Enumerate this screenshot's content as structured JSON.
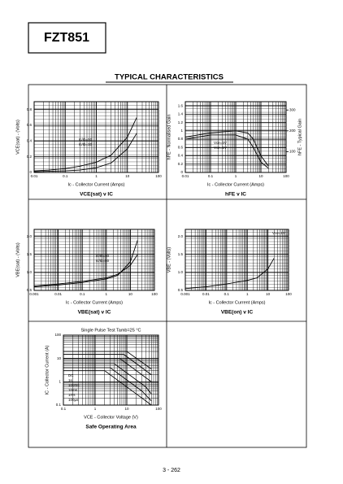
{
  "header": {
    "part": "FZT851"
  },
  "section_title": "TYPICAL CHARACTERISTICS",
  "footer": "3 - 262",
  "chart_data": [
    {
      "type": "line",
      "title": "VCE(sat) v IC",
      "xlabel": "Ic - Collector Current (Amps)",
      "ylabel": "VCE(sat) - (Volts)",
      "xlog": true,
      "xlim": [
        0.01,
        100
      ],
      "xticks": [
        0.01,
        0.1,
        1,
        10,
        100
      ],
      "ylim": [
        0,
        0.9
      ],
      "yticks": [
        0,
        0.2,
        0.4,
        0.6,
        0.8
      ],
      "series": [
        {
          "name": "Ic/Ib=50",
          "color": "#000000",
          "x": [
            0.01,
            0.03,
            0.1,
            0.3,
            1,
            3,
            10,
            20
          ],
          "values": [
            0.02,
            0.03,
            0.05,
            0.08,
            0.13,
            0.22,
            0.45,
            0.7
          ]
        },
        {
          "name": "Ic/Ib=10",
          "color": "#000000",
          "x": [
            0.01,
            0.03,
            0.1,
            0.3,
            1,
            3,
            10,
            20
          ],
          "values": [
            0.01,
            0.015,
            0.02,
            0.03,
            0.06,
            0.12,
            0.3,
            0.5
          ]
        }
      ]
    },
    {
      "type": "line",
      "title": "hFE v IC",
      "xlabel": "Ic - Collector Current (Amps)",
      "ylabel": "hFE - Normalised Gain",
      "y2label": "hFE - Typical Gain",
      "xlog": true,
      "xlim": [
        0.01,
        100
      ],
      "xticks": [
        0.01,
        0.1,
        1,
        10,
        100
      ],
      "ylim": [
        0,
        1.7
      ],
      "yticks": [
        0,
        0.2,
        0.4,
        0.6,
        0.8,
        1.0,
        1.2,
        1.4,
        1.6
      ],
      "y2lim": [
        0,
        340
      ],
      "y2ticks": [
        100,
        200,
        300
      ],
      "series": [
        {
          "name": "Vce=5V",
          "color": "#000000",
          "x": [
            0.01,
            0.1,
            1,
            3,
            5,
            10,
            20
          ],
          "values": [
            0.85,
            0.95,
            1.0,
            0.95,
            0.8,
            0.4,
            0.15
          ]
        },
        {
          "name": "Vce=1V",
          "color": "#000000",
          "x": [
            0.01,
            0.1,
            1,
            3,
            5,
            10,
            20
          ],
          "values": [
            0.8,
            0.9,
            0.9,
            0.8,
            0.6,
            0.25,
            0.1
          ]
        }
      ]
    },
    {
      "type": "line",
      "title": "VBE(sat) v IC",
      "xlabel": "Ic - Collector Current (Amps)",
      "ylabel": "VBE(sat) - (Volts)",
      "xlog": true,
      "xlim": [
        0.001,
        100
      ],
      "xticks": [
        0.001,
        0.01,
        0.1,
        1,
        10,
        100
      ],
      "ylim": [
        0.5,
        2.2
      ],
      "yticks": [
        0.5,
        {
          "value": 1,
          "label": "1.0"
        },
        1.5,
        {
          "value": 2,
          "label": "2.0"
        }
      ],
      "series": [
        {
          "name": "Ic/Ib=10",
          "color": "#000000",
          "x": [
            0.001,
            0.01,
            0.1,
            1,
            3,
            10,
            20
          ],
          "values": [
            0.62,
            0.68,
            0.75,
            0.85,
            0.95,
            1.2,
            1.5
          ]
        },
        {
          "name": "Ic/Ib=50",
          "color": "#000000",
          "x": [
            0.001,
            0.01,
            0.1,
            1,
            3,
            10,
            20
          ],
          "values": [
            0.6,
            0.65,
            0.72,
            0.82,
            0.92,
            1.3,
            1.9
          ]
        }
      ]
    },
    {
      "type": "line",
      "title": "VBE(on) v IC",
      "xlabel": "Ic - Collector Current (Amps)",
      "ylabel": "VBE - (Volts)",
      "xlog": true,
      "xlim": [
        0.001,
        100
      ],
      "xticks": [
        0.001,
        0.01,
        0.1,
        1,
        10,
        100
      ],
      "ylim": [
        0.5,
        2.2
      ],
      "yticks": [
        0.5,
        {
          "value": 1,
          "label": "1.0"
        },
        1.5,
        {
          "value": 2,
          "label": "2.0"
        }
      ],
      "series": [
        {
          "name": "Vce=1V",
          "color": "#000000",
          "x": [
            0.001,
            0.01,
            0.1,
            1,
            3,
            10,
            20
          ],
          "values": [
            0.55,
            0.6,
            0.68,
            0.78,
            0.85,
            1.1,
            1.4
          ]
        }
      ]
    },
    {
      "type": "line",
      "title": "Safe Operating Area",
      "subtitle": "Single Pulse Test Tamb=25 °C",
      "xlabel": "VCE - Collector Voltage (V)",
      "ylabel": "IC - Collector Current (A)",
      "xlog": true,
      "xlim": [
        0.1,
        100
      ],
      "xticks": [
        0.1,
        1,
        10,
        100
      ],
      "ylog": true,
      "ylim": [
        0.1,
        100
      ],
      "yticks": [
        0.1,
        1,
        10,
        100
      ],
      "series": [
        {
          "name": "DC",
          "color": "#000000",
          "x": [
            0.1,
            2,
            20,
            60
          ],
          "values": [
            3,
            3,
            0.3,
            0.1
          ]
        },
        {
          "name": "1s",
          "color": "#000000",
          "x": [
            0.1,
            3,
            30,
            60
          ],
          "values": [
            4,
            4,
            0.4,
            0.15
          ]
        },
        {
          "name": "100ms",
          "color": "#000000",
          "x": [
            0.1,
            4,
            40,
            60
          ],
          "values": [
            6,
            6,
            0.6,
            0.3
          ]
        },
        {
          "name": "10ms",
          "color": "#000000",
          "x": [
            0.1,
            6,
            60
          ],
          "values": [
            10,
            10,
            1
          ]
        },
        {
          "name": "1ms",
          "color": "#000000",
          "x": [
            0.1,
            8,
            60
          ],
          "values": [
            15,
            15,
            2
          ]
        },
        {
          "name": "100µs",
          "color": "#000000",
          "x": [
            0.1,
            10,
            60
          ],
          "values": [
            20,
            20,
            3.5
          ]
        }
      ]
    }
  ]
}
